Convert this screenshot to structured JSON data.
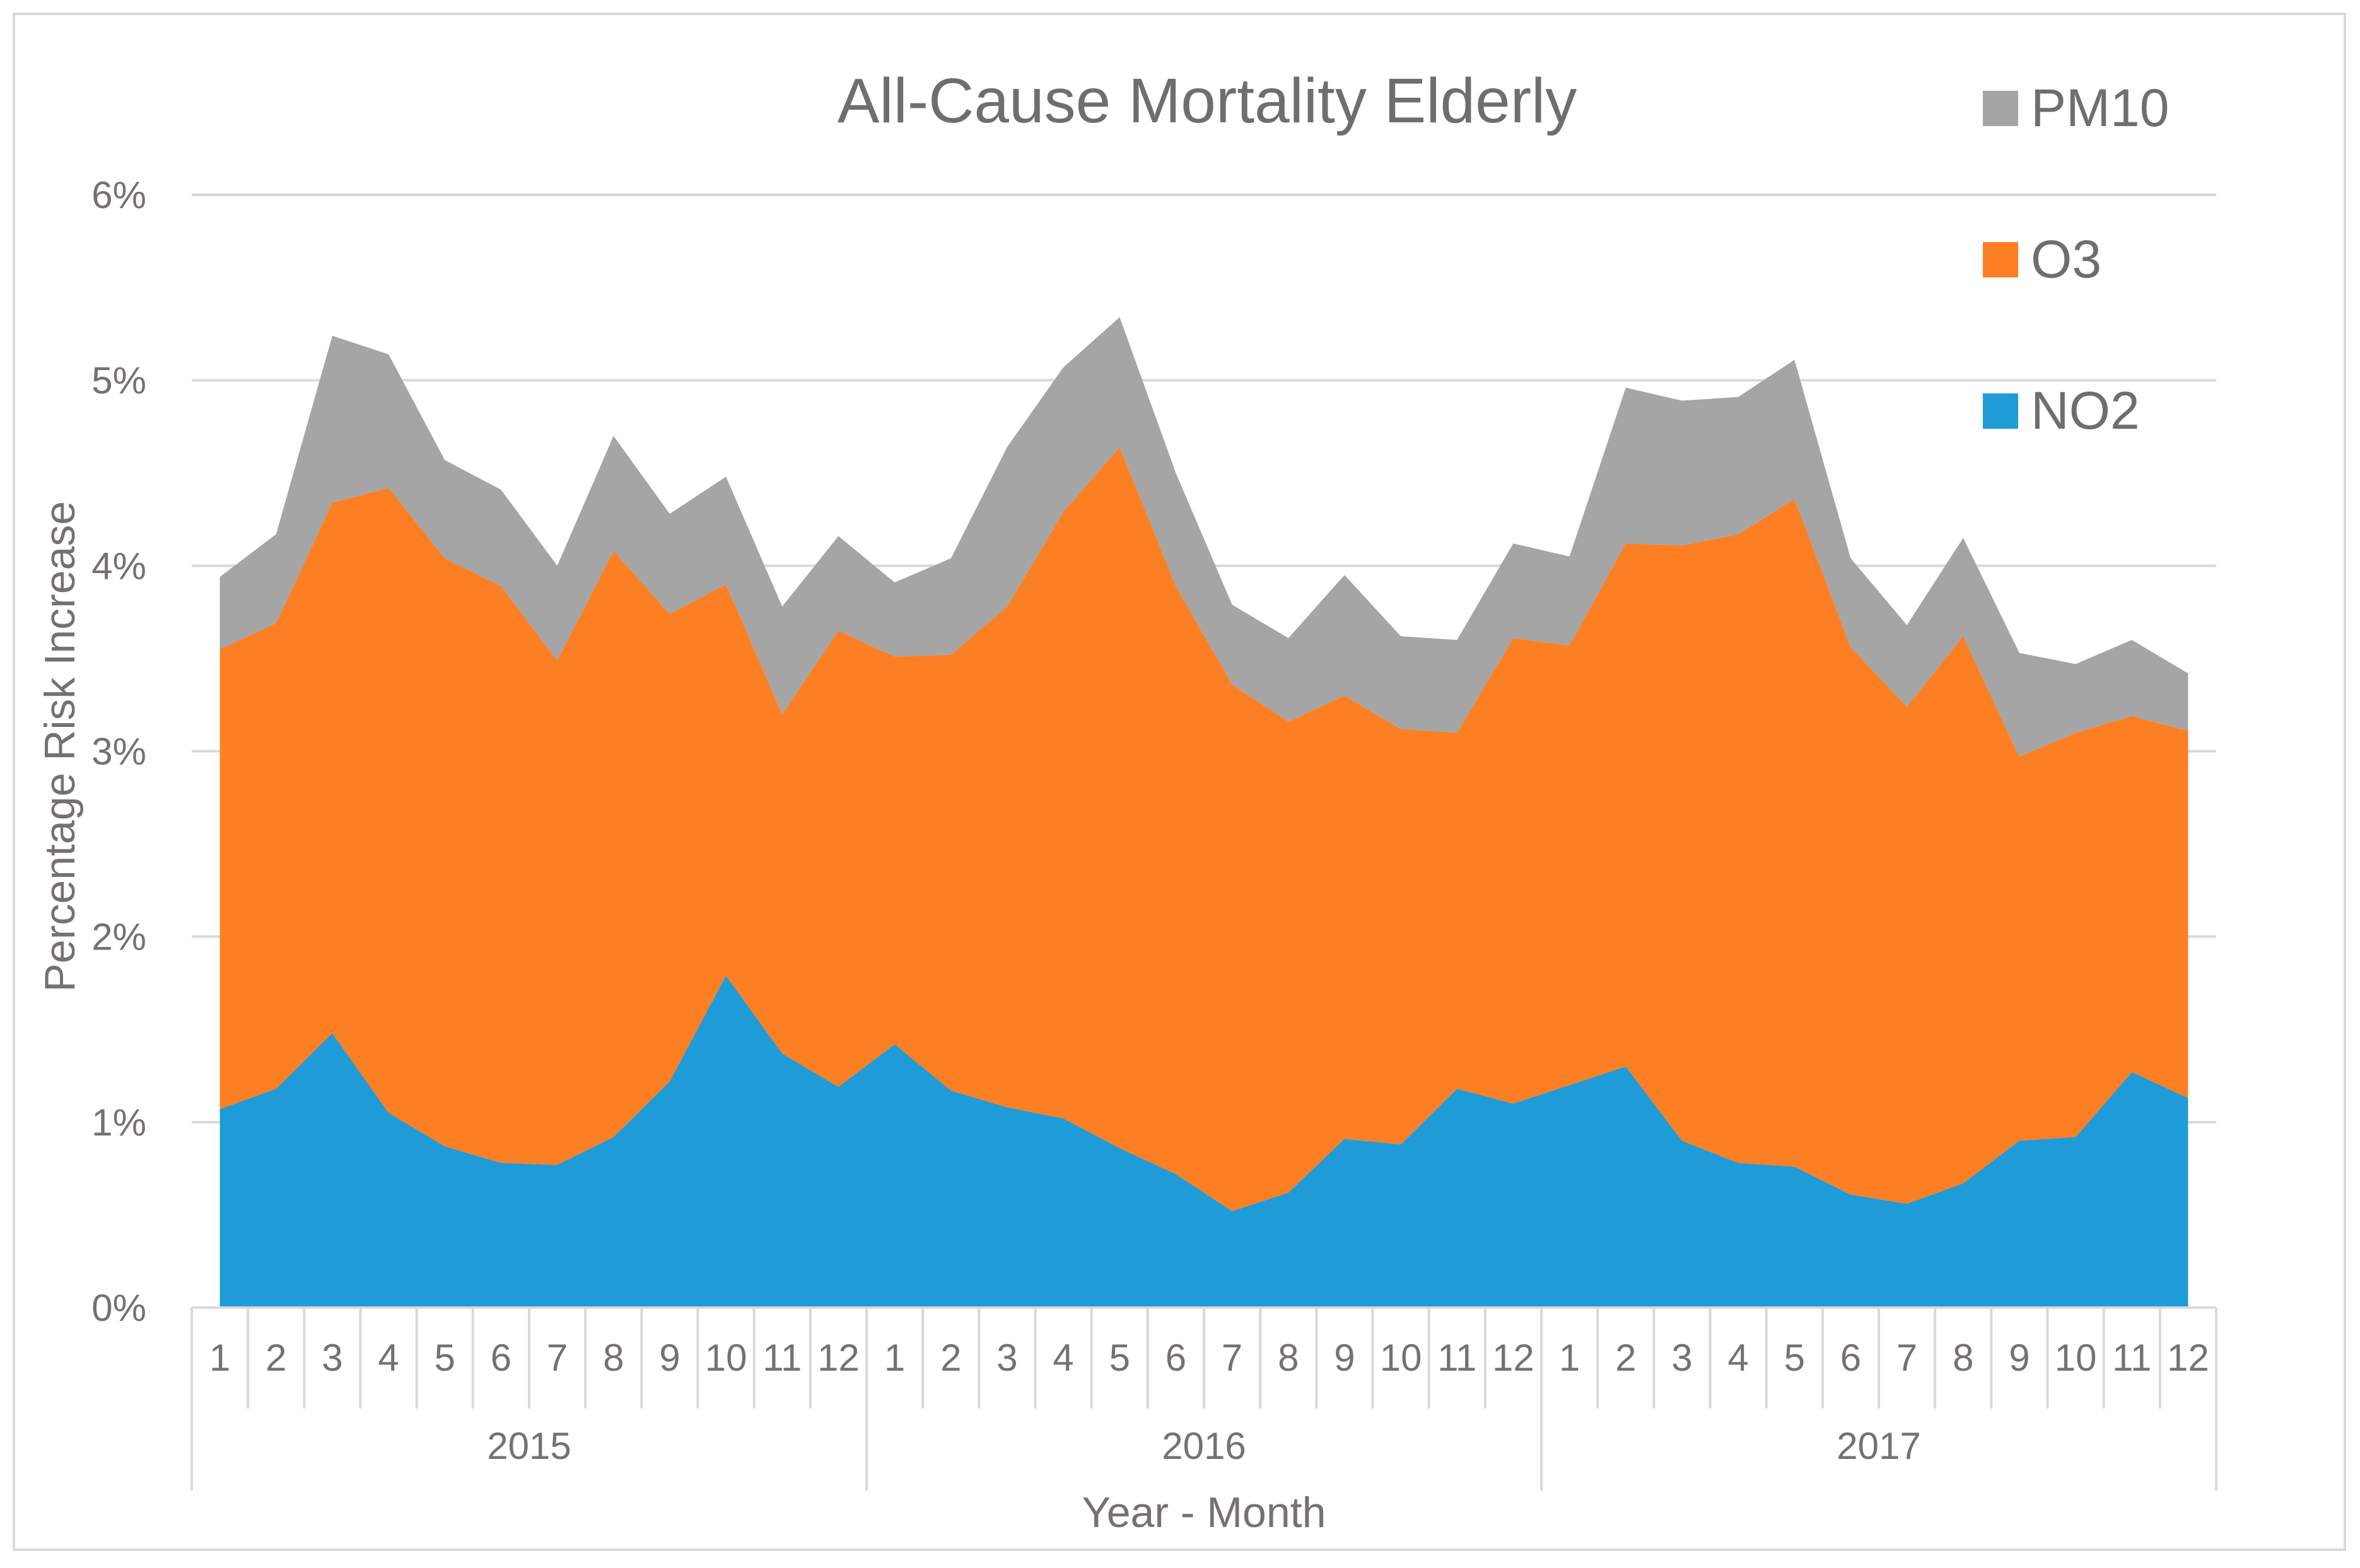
{
  "chart_data": {
    "type": "area",
    "stacked": true,
    "title": "All-Cause Mortality Elderly",
    "xlabel": "Year - Month",
    "ylabel": "Percentage Risk Increase",
    "ylim": [
      0,
      6
    ],
    "yticks": [
      "0%",
      "1%",
      "2%",
      "3%",
      "4%",
      "5%",
      "6%"
    ],
    "grid": true,
    "legend_position": "top-right",
    "years": [
      "2015",
      "2016",
      "2017"
    ],
    "months": [
      "1",
      "2",
      "3",
      "4",
      "5",
      "6",
      "7",
      "8",
      "9",
      "10",
      "11",
      "12"
    ],
    "series": [
      {
        "name": "NO2",
        "color": "#1f9bd7",
        "values": [
          1.07,
          1.18,
          1.48,
          1.05,
          0.87,
          0.78,
          0.77,
          0.92,
          1.22,
          1.79,
          1.37,
          1.19,
          1.42,
          1.17,
          1.08,
          1.02,
          0.86,
          0.72,
          0.52,
          0.62,
          0.91,
          0.88,
          1.18,
          1.1,
          1.2,
          1.3,
          0.9,
          0.78,
          0.76,
          0.61,
          0.56,
          0.67,
          0.9,
          0.92,
          1.27,
          1.13
        ]
      },
      {
        "name": "O3",
        "color": "#fd7f23",
        "values": [
          2.48,
          2.51,
          2.86,
          3.37,
          3.17,
          3.11,
          2.72,
          3.16,
          2.52,
          2.11,
          1.83,
          2.46,
          2.09,
          2.35,
          2.7,
          3.27,
          3.78,
          3.17,
          2.84,
          2.54,
          2.39,
          2.24,
          1.92,
          2.51,
          2.37,
          2.82,
          3.21,
          3.39,
          3.6,
          2.95,
          2.68,
          2.95,
          2.07,
          2.18,
          1.92,
          1.98
        ]
      },
      {
        "name": "PM10",
        "color": "#a5a5a5",
        "values": [
          0.39,
          0.48,
          0.9,
          0.72,
          0.53,
          0.52,
          0.51,
          0.62,
          0.54,
          0.58,
          0.58,
          0.51,
          0.4,
          0.52,
          0.86,
          0.78,
          0.7,
          0.61,
          0.43,
          0.45,
          0.65,
          0.5,
          0.5,
          0.51,
          0.48,
          0.84,
          0.78,
          0.74,
          0.75,
          0.48,
          0.44,
          0.53,
          0.56,
          0.37,
          0.41,
          0.31
        ]
      }
    ]
  }
}
